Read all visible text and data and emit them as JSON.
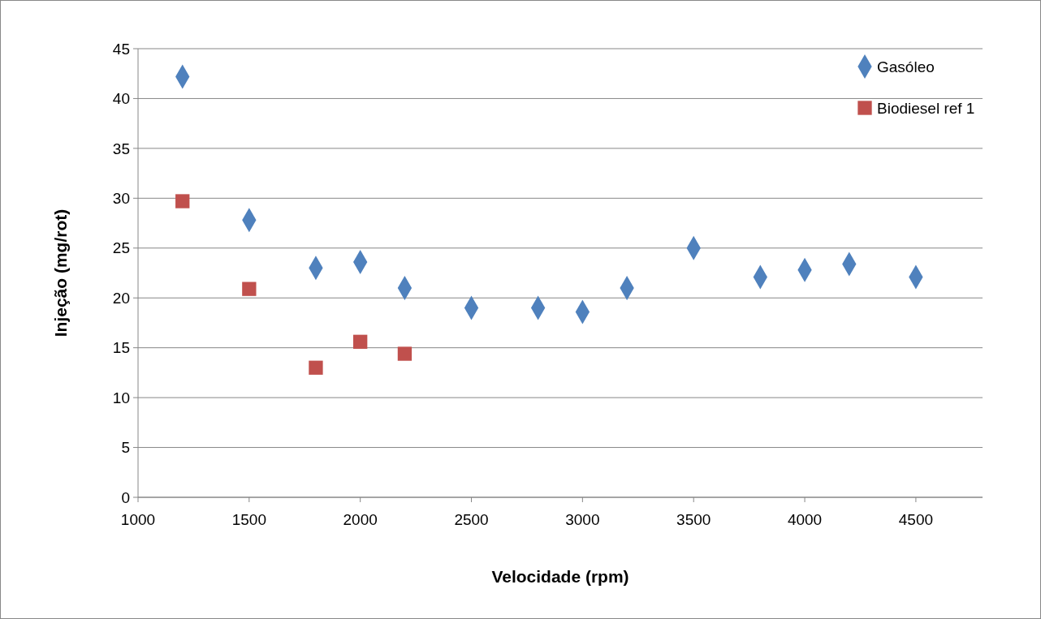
{
  "chart_data": {
    "type": "scatter",
    "xlabel": "Velocidade (rpm)",
    "ylabel": "Injeção (mg/rot)",
    "xlim": [
      1000,
      4800
    ],
    "xticks": [
      1000,
      1500,
      2000,
      2500,
      3000,
      3500,
      4000,
      4500
    ],
    "ylim": [
      0,
      45
    ],
    "yticks": [
      0,
      5,
      10,
      15,
      20,
      25,
      30,
      35,
      40,
      45
    ],
    "grid": "y",
    "legend": "top right",
    "series": [
      {
        "name": "Gasóleo",
        "color": "#4f81bd",
        "marker": "diamond",
        "x": [
          1200,
          1500,
          1800,
          2000,
          2200,
          2500,
          2800,
          3000,
          3200,
          3500,
          3800,
          4000,
          4200,
          4500
        ],
        "values": [
          42.2,
          27.8,
          23.0,
          23.6,
          21.0,
          19.0,
          19.0,
          18.6,
          21.0,
          25.0,
          22.1,
          22.8,
          23.4,
          22.1
        ]
      },
      {
        "name": "Biodiesel ref 1",
        "color": "#c0504d",
        "marker": "square",
        "x": [
          1200,
          1500,
          1800,
          2000,
          2200
        ],
        "values": [
          29.7,
          20.9,
          13.0,
          15.6,
          14.4
        ]
      }
    ]
  }
}
